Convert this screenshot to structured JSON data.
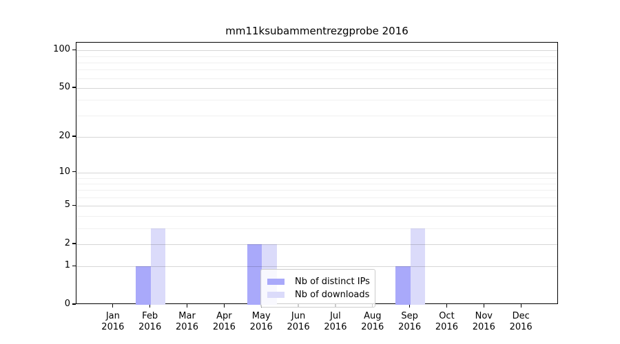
{
  "title": "mm11ksubammentrezgprobe 2016",
  "legend": {
    "items": [
      {
        "label": "Nb of distinct IPs",
        "color": "#a9a9fa"
      },
      {
        "label": "Nb of downloads",
        "color": "#dbdbfa"
      }
    ]
  },
  "chart_data": {
    "type": "bar",
    "title": "mm11ksubammentrezgprobe 2016",
    "categories": [
      "Jan 2016",
      "Feb 2016",
      "Mar 2016",
      "Apr 2016",
      "May 2016",
      "Jun 2016",
      "Jul 2016",
      "Aug 2016",
      "Sep 2016",
      "Oct 2016",
      "Nov 2016",
      "Dec 2016"
    ],
    "series": [
      {
        "name": "Nb of distinct IPs",
        "color": "#a9a9fa",
        "values": [
          0,
          1,
          0,
          0,
          2,
          0,
          0,
          0,
          1,
          0,
          0,
          0
        ]
      },
      {
        "name": "Nb of downloads",
        "color": "#dbdbfa",
        "values": [
          0,
          3,
          0,
          0,
          2,
          0,
          0,
          0,
          3,
          0,
          0,
          0
        ]
      }
    ],
    "xlabel": "",
    "ylabel": "",
    "yscale": "log1p",
    "yticks": [
      0,
      1,
      2,
      5,
      10,
      20,
      50,
      100
    ],
    "minor_yticks": [
      3,
      4,
      6,
      7,
      8,
      9,
      30,
      40,
      60,
      70,
      80,
      90
    ],
    "ylim": [
      0,
      116
    ],
    "grid": true,
    "legend_position": "lower center"
  }
}
